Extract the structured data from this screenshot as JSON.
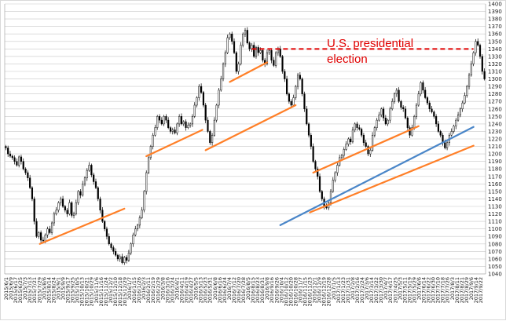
{
  "chart_data": {
    "type": "candlestick",
    "title": "",
    "xlabel": "",
    "ylabel": "",
    "ylim": [
      1040,
      1400
    ],
    "ytick_step": 10,
    "grid": "horizontal",
    "x_ticks": [
      "2015/6/1",
      "2015/6/9",
      "2015/6/17",
      "2015/6/25",
      "2015/7/3",
      "2015/7/13",
      "2015/7/21",
      "2015/7/29",
      "2015/8/6",
      "2015/8/14",
      "2015/8/24",
      "2015/9/1",
      "2015/9/9",
      "2015/9/17",
      "2015/9/25",
      "2015/10/5",
      "2015/10/13",
      "2015/10/21",
      "2015/10/29",
      "2015/11/6",
      "2015/11/16",
      "2015/11/24",
      "2015/12/2",
      "2015/12/10",
      "2015/12/18",
      "2015/12/29",
      "2016/1/7",
      "2016/1/15",
      "2016/1/26",
      "2016/2/3",
      "2016/2/11",
      "2016/2/19",
      "2016/2/29",
      "2016/3/8",
      "2016/3/16",
      "2016/3/24",
      "2016/4/1",
      "2016/4/11",
      "2016/4/19",
      "2016/4/27",
      "2016/5/5",
      "2016/5/13",
      "2016/5/23",
      "2016/5/31",
      "2016/6/8",
      "2016/6/16",
      "2016/6/24",
      "2016/7/4",
      "2016/7/12",
      "2016/7/20",
      "2016/7/28",
      "2016/8/5",
      "2016/8/15",
      "2016/8/23",
      "2016/8/31",
      "2016/9/8",
      "2016/9/16",
      "2016/9/26",
      "2016/10/4",
      "2016/10/12",
      "2016/10/20",
      "2016/10/28",
      "2016/11/7",
      "2016/11/15",
      "2016/11/23",
      "2016/12/1",
      "2016/12/9",
      "2016/12/19",
      "2016/12/28",
      "2017/1/5",
      "2017/1/13",
      "2017/1/23",
      "2017/1/31",
      "2017/2/8",
      "2017/2/16",
      "2017/2/24",
      "2017/3/6",
      "2017/3/14",
      "2017/3/22",
      "2017/3/30",
      "2017/4/7",
      "2017/4/17",
      "2017/4/25",
      "2017/5/3",
      "2017/5/11",
      "2017/5/19",
      "2017/5/29",
      "2017/6/6",
      "2017/6/14",
      "2017/6/22",
      "2017/6/30",
      "2017/7/10",
      "2017/7/18",
      "2017/7/26",
      "2017/8/3",
      "2017/8/11",
      "2017/8/21",
      "2017/8/29",
      "2017/9/6",
      "2017/9/14",
      "2017/9/22"
    ],
    "series": [
      {
        "values": [
          1208,
          1200,
          1197,
          1195,
          1190,
          1185,
          1196,
          1190,
          1180,
          1175,
          1168,
          1155,
          1140,
          1110,
          1090,
          1095,
          1085,
          1084,
          1092,
          1100,
          1095,
          1108,
          1120,
          1125,
          1135,
          1140,
          1130,
          1125,
          1120,
          1135,
          1118,
          1120,
          1135,
          1150,
          1145,
          1160,
          1168,
          1178,
          1185,
          1172,
          1163,
          1155,
          1140,
          1125,
          1110,
          1100,
          1090,
          1080,
          1075,
          1070,
          1065,
          1060,
          1063,
          1055,
          1062,
          1058,
          1068,
          1080,
          1092,
          1100,
          1105,
          1115,
          1125,
          1150,
          1175,
          1195,
          1210,
          1225,
          1235,
          1250,
          1245,
          1240,
          1250,
          1245,
          1235,
          1230,
          1232,
          1228,
          1240,
          1250,
          1240,
          1243,
          1235,
          1238,
          1240,
          1250,
          1265,
          1275,
          1290,
          1282,
          1265,
          1245,
          1230,
          1215,
          1225,
          1245,
          1265,
          1285,
          1300,
          1320,
          1335,
          1355,
          1360,
          1350,
          1335,
          1310,
          1320,
          1345,
          1360,
          1365,
          1348,
          1340,
          1345,
          1330,
          1342,
          1335,
          1338,
          1325,
          1320,
          1335,
          1338,
          1325,
          1318,
          1335,
          1340,
          1330,
          1310,
          1300,
          1280,
          1270,
          1265,
          1275,
          1290,
          1305,
          1300,
          1280,
          1260,
          1240,
          1225,
          1210,
          1190,
          1180,
          1170,
          1150,
          1140,
          1130,
          1128,
          1135,
          1150,
          1165,
          1175,
          1185,
          1195,
          1198,
          1206,
          1213,
          1220,
          1216,
          1232,
          1240,
          1235,
          1233,
          1225,
          1215,
          1210,
          1200,
          1205,
          1225,
          1235,
          1245,
          1252,
          1260,
          1248,
          1240,
          1245,
          1260,
          1270,
          1280,
          1285,
          1270,
          1262,
          1260,
          1248,
          1235,
          1225,
          1235,
          1250,
          1265,
          1280,
          1295,
          1285,
          1275,
          1268,
          1260,
          1256,
          1250,
          1240,
          1230,
          1225,
          1215,
          1208,
          1215,
          1225,
          1230,
          1237,
          1245,
          1252,
          1260,
          1268,
          1278,
          1290,
          1305,
          1320,
          1335,
          1350,
          1345,
          1330,
          1310,
          1300
        ]
      }
    ],
    "trendlines": [
      {
        "color": "#ff7f27",
        "points": [
          [
            15.5,
            1080
          ],
          [
            54,
            1127
          ]
        ]
      },
      {
        "color": "#ff7f27",
        "points": [
          [
            64,
            1197
          ],
          [
            89.5,
            1232
          ]
        ]
      },
      {
        "color": "#ff7f27",
        "points": [
          [
            91,
            1205
          ],
          [
            132,
            1265
          ]
        ]
      },
      {
        "color": "#ff7f27",
        "points": [
          [
            102,
            1296
          ],
          [
            119,
            1322
          ]
        ]
      },
      {
        "color": "#ff7f27",
        "points": [
          [
            140,
            1175
          ],
          [
            188,
            1237
          ]
        ]
      },
      {
        "color": "#ff7f27",
        "points": [
          [
            138.5,
            1122
          ],
          [
            213,
            1211
          ]
        ]
      },
      {
        "color": "#4a86c8",
        "points": [
          [
            125,
            1105
          ],
          [
            213,
            1236
          ]
        ]
      }
    ],
    "reference_lines": [
      {
        "y": 1340,
        "x_from": 112,
        "x_to": 213,
        "style": "dashed",
        "color": "#e00000"
      }
    ],
    "annotations": [
      {
        "text": "U.S. presidential",
        "color": "#e00000"
      },
      {
        "text": "election",
        "color": "#e00000"
      }
    ]
  },
  "colors": {
    "candle": "#000000",
    "grid": "#c8c8c8",
    "orange_trend": "#ff7f27",
    "blue_trend": "#4a86c8",
    "annotation": "#e00000"
  }
}
